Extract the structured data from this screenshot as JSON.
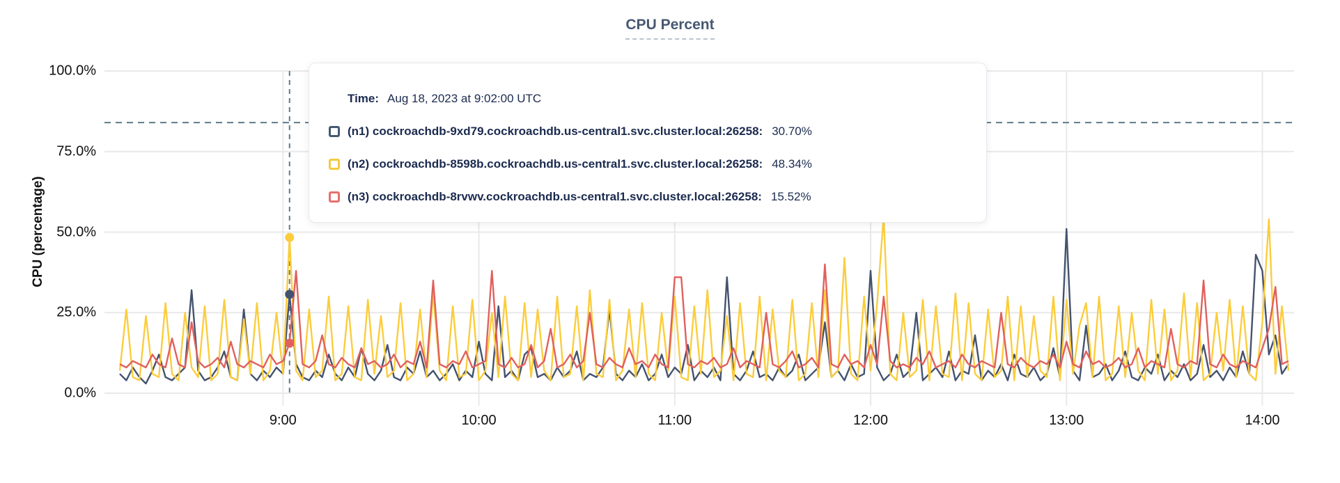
{
  "title": "CPU Percent",
  "y_axis": {
    "label": "CPU (percentage)",
    "tick_labels": [
      "0.0%",
      "25.0%",
      "50.0%",
      "75.0%",
      "100.0%"
    ],
    "tick_values": [
      0,
      25,
      50,
      75,
      100
    ]
  },
  "x_axis": {
    "tick_labels": [
      "9:00",
      "10:00",
      "11:00",
      "12:00",
      "13:00",
      "14:00"
    ],
    "tick_indices": [
      25,
      55,
      85,
      115,
      145,
      175
    ]
  },
  "tooltip": {
    "time_label": "Time:",
    "time_value": "Aug 18, 2023 at 9:02:00 UTC",
    "rows": [
      {
        "name": "(n1) cockroachdb-9xd79.cockroachdb.us-central1.svc.cluster.local:26258:",
        "value": "30.70%",
        "color": "#475872"
      },
      {
        "name": "(n2) cockroachdb-8598b.cockroachdb.us-central1.svc.cluster.local:26258:",
        "value": "48.34%",
        "color": "#f4cb3f"
      },
      {
        "name": "(n3) cockroachdb-8rvwv.cockroachdb.us-central1.svc.cluster.local:26258:",
        "value": "15.52%",
        "color": "#e5716d"
      }
    ]
  },
  "colors": {
    "title": "#475872",
    "tooltip_text": "#1b2b4f",
    "grid": "#e9e9e9",
    "dashed_guides": "#5f7a8a",
    "series_n1": "#44526e",
    "series_n2": "#fbcd3d",
    "series_n3": "#e0605d"
  },
  "chart_data": {
    "type": "line",
    "title": "CPU Percent",
    "xlabel": "",
    "ylabel": "CPU (percentage)",
    "ylim": [
      0,
      100
    ],
    "grid": true,
    "legend_position": "tooltip-overlay",
    "x_start_time": "8:10",
    "x_step_minutes": 2,
    "x_tick_labels": [
      "9:00",
      "10:00",
      "11:00",
      "12:00",
      "13:00",
      "14:00"
    ],
    "threshold_dashed_line_percent": 84,
    "hover": {
      "index": 26,
      "time": "9:02:00 UTC",
      "date": "Aug 18, 2023"
    },
    "series": [
      {
        "name": "(n1) cockroachdb-9xd79.cockroachdb.us-central1.svc.cluster.local:26258",
        "color": "#44526e",
        "hover_value": 30.7,
        "values": [
          6,
          4,
          8,
          5,
          3,
          7,
          12,
          5,
          4,
          6,
          8,
          32,
          7,
          4,
          5,
          8,
          13,
          5,
          4,
          26,
          6,
          4,
          7,
          5,
          8,
          6,
          30.7,
          9,
          5,
          4,
          7,
          5,
          12,
          6,
          4,
          8,
          5,
          14,
          6,
          4,
          7,
          15,
          5,
          4,
          8,
          6,
          13,
          5,
          7,
          4,
          6,
          9,
          4,
          7,
          5,
          16,
          6,
          4,
          27,
          5,
          7,
          4,
          12,
          14,
          5,
          6,
          4,
          8,
          5,
          7,
          13,
          4,
          6,
          5,
          8,
          26,
          6,
          4,
          7,
          5,
          9,
          4,
          6,
          12,
          5,
          8,
          6,
          15,
          4,
          7,
          5,
          8,
          4,
          36,
          6,
          4,
          7,
          13,
          5,
          6,
          4,
          8,
          5,
          7,
          12,
          4,
          6,
          8,
          22,
          5,
          7,
          4,
          9,
          5,
          6,
          38,
          8,
          4,
          6,
          12,
          5,
          7,
          25,
          4,
          6,
          8,
          5,
          13,
          4,
          7,
          6,
          18,
          4,
          7,
          5,
          9,
          4,
          12,
          6,
          5,
          8,
          4,
          6,
          14,
          5,
          51,
          7,
          4,
          21,
          5,
          6,
          9,
          4,
          7,
          13,
          5,
          4,
          8,
          6,
          12,
          4,
          7,
          5,
          9,
          4,
          6,
          15,
          5,
          7,
          4,
          8,
          5,
          13,
          6,
          43,
          38,
          12,
          18,
          6,
          9
        ]
      },
      {
        "name": "(n2) cockroachdb-8598b.cockroachdb.us-central1.svc.cluster.local:26258",
        "color": "#fbcd3d",
        "hover_value": 48.34,
        "values": [
          7,
          26,
          5,
          4,
          24,
          6,
          5,
          28,
          6,
          4,
          25,
          8,
          5,
          27,
          4,
          6,
          29,
          5,
          4,
          23,
          6,
          28,
          4,
          7,
          25,
          6,
          48.34,
          7,
          4,
          26,
          5,
          7,
          30,
          4,
          6,
          27,
          5,
          4,
          29,
          6,
          24,
          5,
          7,
          28,
          4,
          6,
          26,
          5,
          31,
          7,
          4,
          27,
          5,
          6,
          29,
          4,
          7,
          25,
          5,
          30,
          6,
          4,
          28,
          5,
          26,
          7,
          4,
          30,
          5,
          6,
          27,
          4,
          32,
          6,
          5,
          29,
          4,
          7,
          26,
          5,
          28,
          6,
          4,
          25,
          7,
          30,
          5,
          4,
          27,
          6,
          32,
          5,
          7,
          24,
          4,
          28,
          6,
          5,
          30,
          4,
          26,
          7,
          5,
          29,
          4,
          6,
          28,
          5,
          32,
          5,
          7,
          42,
          6,
          4,
          30,
          7,
          28,
          55,
          6,
          4,
          25,
          5,
          7,
          29,
          4,
          27,
          6,
          5,
          31,
          4,
          28,
          6,
          4,
          26,
          5,
          7,
          30,
          4,
          27,
          5,
          24,
          7,
          5,
          30,
          4,
          29,
          6,
          21,
          28,
          5,
          30,
          4,
          6,
          27,
          5,
          25,
          7,
          4,
          29,
          6,
          26,
          4,
          7,
          31,
          5,
          28,
          4,
          6,
          25,
          7,
          29,
          5,
          27,
          6,
          4,
          22,
          54,
          6,
          27,
          7
        ]
      },
      {
        "name": "(n3) cockroachdb-8rvwv.cockroachdb.us-central1.svc.cluster.local:26258",
        "color": "#e0605d",
        "hover_value": 15.52,
        "values": [
          9,
          8,
          10,
          9,
          8,
          12,
          9,
          8,
          17,
          9,
          8,
          22,
          10,
          8,
          9,
          11,
          8,
          16,
          9,
          8,
          10,
          9,
          8,
          12,
          9,
          10,
          15.52,
          38,
          9,
          8,
          10,
          18,
          9,
          8,
          11,
          9,
          8,
          14,
          9,
          10,
          8,
          9,
          12,
          8,
          10,
          9,
          16,
          8,
          35,
          9,
          8,
          10,
          9,
          13,
          8,
          9,
          10,
          38,
          9,
          8,
          11,
          8,
          9,
          15,
          8,
          10,
          20,
          8,
          9,
          12,
          8,
          10,
          25,
          9,
          8,
          11,
          9,
          8,
          14,
          9,
          10,
          8,
          12,
          9,
          8,
          36,
          36,
          9,
          8,
          10,
          9,
          11,
          8,
          9,
          14,
          8,
          10,
          9,
          8,
          25,
          9,
          8,
          10,
          13,
          8,
          9,
          11,
          8,
          40,
          9,
          8,
          12,
          9,
          10,
          8,
          15,
          9,
          30,
          10,
          8,
          9,
          8,
          11,
          9,
          13,
          8,
          9,
          10,
          8,
          12,
          9,
          8,
          10,
          9,
          8,
          25,
          9,
          8,
          11,
          9,
          8,
          10,
          9,
          12,
          8,
          16,
          9,
          8,
          13,
          9,
          10,
          8,
          9,
          11,
          8,
          9,
          14,
          8,
          10,
          9,
          8,
          20,
          9,
          8,
          10,
          9,
          35,
          9,
          8,
          12,
          9,
          8,
          10,
          9,
          8,
          14,
          20,
          33,
          9,
          10
        ]
      }
    ]
  }
}
